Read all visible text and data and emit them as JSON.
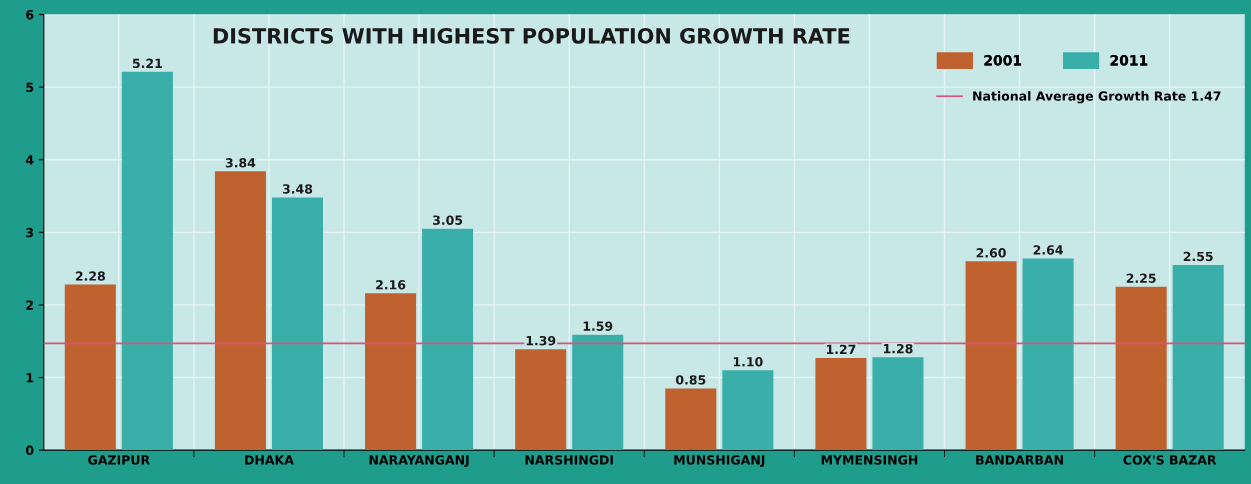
{
  "chart_data": {
    "type": "bar",
    "title": "DISTRICTS WITH HIGHEST POPULATION GROWTH RATE",
    "categories": [
      "GAZIPUR",
      "DHAKA",
      "NARAYANGANJ",
      "NARSHINGDI",
      "MUNSHIGANJ",
      "MYMENSINGH",
      "BANDARBAN",
      "COX'S BAZAR"
    ],
    "series": [
      {
        "name": "2001",
        "color": "#c0622f",
        "values": [
          2.28,
          3.84,
          2.16,
          1.39,
          0.85,
          1.27,
          2.6,
          2.25
        ],
        "value_labels": [
          "2.28",
          "3.84",
          "2.16",
          "1.39",
          "0.85",
          "1.27",
          "2.60",
          "2.25"
        ]
      },
      {
        "name": "2011",
        "color": "#3aaea8",
        "values": [
          5.21,
          3.48,
          3.05,
          1.59,
          1.1,
          1.28,
          2.64,
          2.55
        ],
        "value_labels": [
          "5.21",
          "3.48",
          "3.05",
          "1.59",
          "1.10",
          "1.28",
          "2.64",
          "2.55"
        ]
      }
    ],
    "ref_lines": [
      {
        "axis": "y",
        "value": 1.47,
        "label": "National Average Growth Rate 1.47",
        "color": "#d9537a"
      }
    ],
    "ylim": [
      0,
      6
    ],
    "yticks": [
      0,
      1,
      2,
      3,
      4,
      5,
      6
    ],
    "grid": true,
    "legend": "top right"
  }
}
